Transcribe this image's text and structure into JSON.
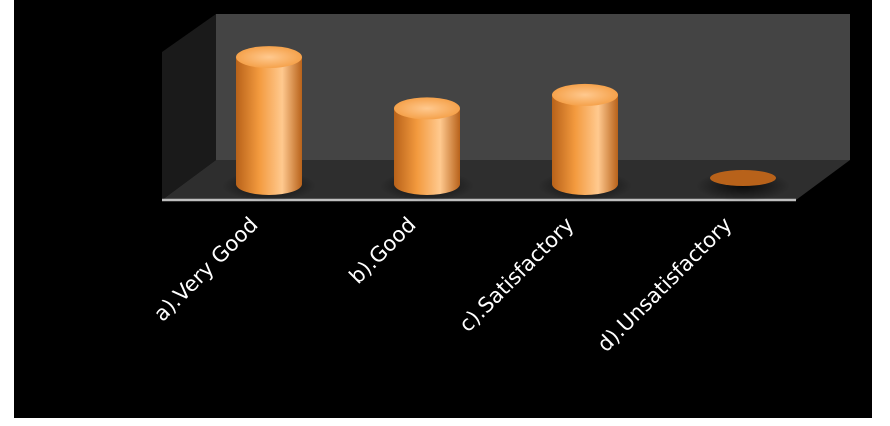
{
  "chart_data": {
    "type": "bar",
    "style": "3d-cylinder",
    "categories": [
      "a).Very Good",
      "b).Good",
      "c).Satisfactory",
      "d).Unsatisfactory"
    ],
    "values": [
      47,
      28,
      33,
      0
    ],
    "ylim": [
      0,
      50
    ],
    "grid": false,
    "legend": "none",
    "colors": {
      "bar": "#F39A3E",
      "bar_highlight": "#FFC98F",
      "bar_shadow": "#B8621A",
      "background": "#000000",
      "back_wall": "#444444",
      "floor": "#2E2E2E",
      "side_wall": "#1A1A1A",
      "baseline": "#BFBFBF",
      "label": "#FFFFFF"
    }
  }
}
